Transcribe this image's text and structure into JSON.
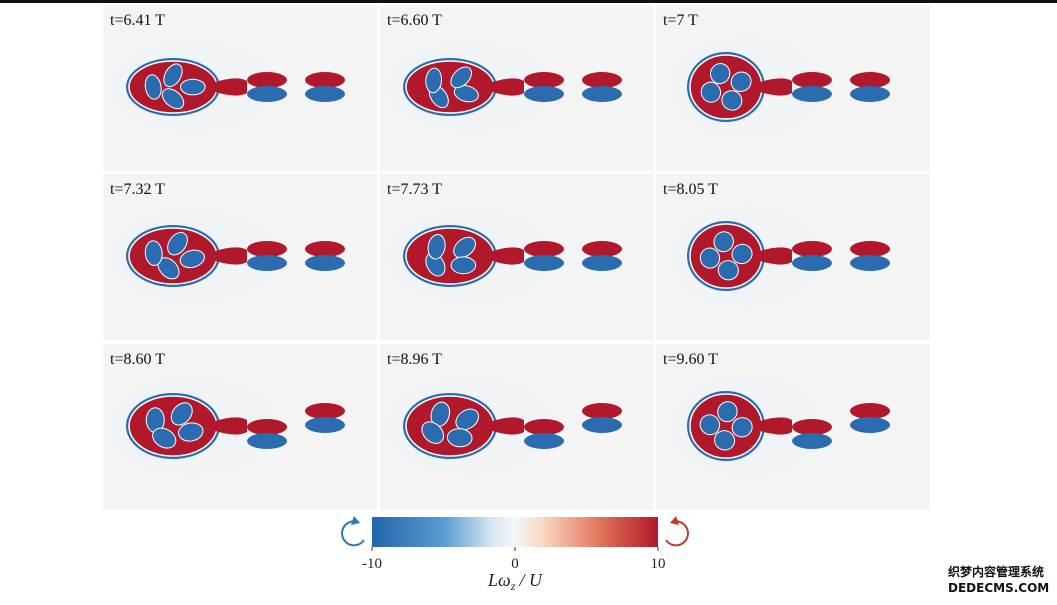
{
  "panels": [
    {
      "label": "t=6.41 T"
    },
    {
      "label": "t=6.60 T"
    },
    {
      "label": "t=7 T"
    },
    {
      "label": "t=7.32 T"
    },
    {
      "label": "t=7.73 T"
    },
    {
      "label": "t=8.05 T"
    },
    {
      "label": "t=8.60 T"
    },
    {
      "label": "t=8.96 T"
    },
    {
      "label": "t=9.60 T"
    }
  ],
  "colorbar": {
    "lim": [
      -10,
      10
    ],
    "ticks": [
      -10,
      0,
      10
    ],
    "label": {
      "main": "Lω",
      "sub": "z",
      "rest": "/ U"
    }
  },
  "watermark": {
    "line1": "织梦内容管理系统",
    "line2": "DEDECMS.COM"
  }
}
